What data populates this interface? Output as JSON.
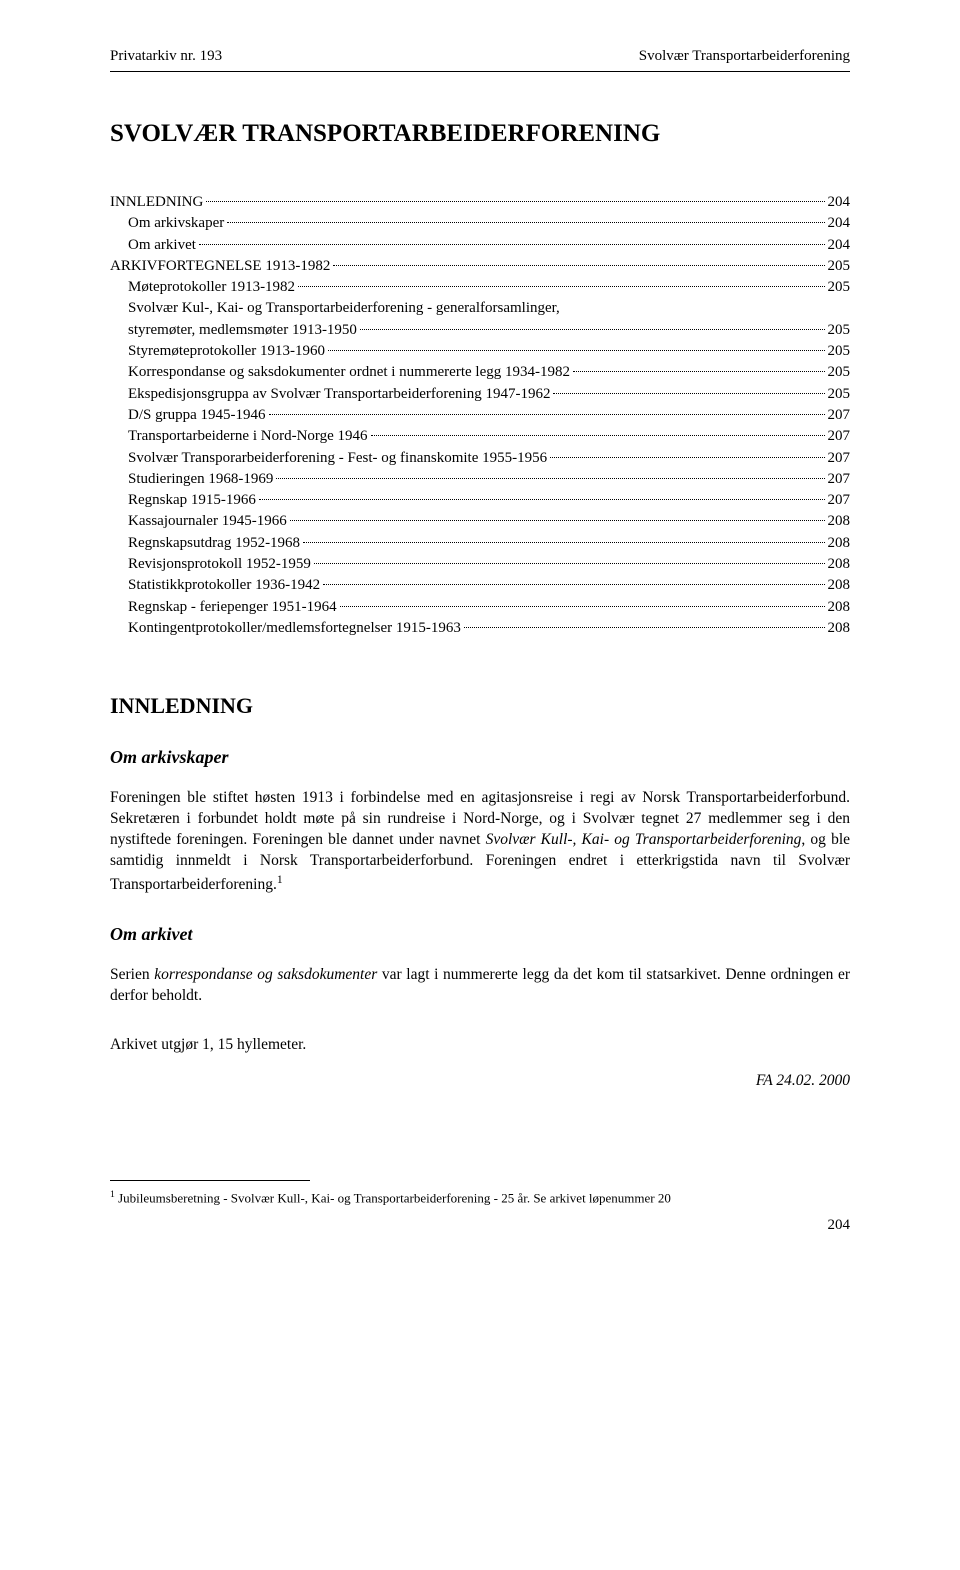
{
  "header": {
    "left": "Privatarkiv nr. 193",
    "right": "Svolvær Transportarbeiderforening"
  },
  "title": "SVOLVÆR TRANSPORTARBEIDERFORENING",
  "toc": [
    {
      "label": "INNLEDNING",
      "page": "204",
      "indent": false
    },
    {
      "label": "Om arkivskaper",
      "page": "204",
      "indent": true
    },
    {
      "label": "Om arkivet",
      "page": "204",
      "indent": true
    },
    {
      "label": "ARKIVFORTEGNELSE 1913-1982",
      "page": "205",
      "indent": false
    },
    {
      "label": "Møteprotokoller 1913-1982",
      "page": "205",
      "indent": true
    },
    {
      "label": "Svolvær Kul-, Kai- og Transportarbeiderforening - generalforsamlinger, styremøter, medlemsmøter 1913-1950",
      "page": "205",
      "indent": true
    },
    {
      "label": "Styremøteprotokoller 1913-1960",
      "page": "205",
      "indent": true
    },
    {
      "label": "Korrespondanse og saksdokumenter ordnet i nummererte legg 1934-1982",
      "page": "205",
      "indent": true
    },
    {
      "label": "Ekspedisjonsgruppa av Svolvær Transportarbeiderforening 1947-1962",
      "page": "205",
      "indent": true
    },
    {
      "label": "D/S gruppa 1945-1946",
      "page": "207",
      "indent": true
    },
    {
      "label": "Transportarbeiderne i Nord-Norge 1946",
      "page": "207",
      "indent": true
    },
    {
      "label": "Svolvær Transporarbeiderforening - Fest- og finanskomite 1955-1956",
      "page": "207",
      "indent": true
    },
    {
      "label": "Studieringen 1968-1969",
      "page": "207",
      "indent": true
    },
    {
      "label": "Regnskap 1915-1966",
      "page": "207",
      "indent": true
    },
    {
      "label": "Kassajournaler 1945-1966",
      "page": "208",
      "indent": true
    },
    {
      "label": "Regnskapsutdrag 1952-1968",
      "page": "208",
      "indent": true
    },
    {
      "label": "Revisjonsprotokoll 1952-1959",
      "page": "208",
      "indent": true
    },
    {
      "label": "Statistikkprotokoller 1936-1942",
      "page": "208",
      "indent": true
    },
    {
      "label": "Regnskap - feriepenger 1951-1964",
      "page": "208",
      "indent": true
    },
    {
      "label": "Kontingentprotokoller/medlemsfortegnelser 1915-1963",
      "page": "208",
      "indent": true
    }
  ],
  "sections": {
    "innledning_title": "INNLEDNING",
    "om_arkivskaper_title": "Om arkivskaper",
    "om_arkivskaper_p1a": "Foreningen ble stiftet høsten 1913 i forbindelse med en agitasjonsreise i regi av Norsk Transportarbeiderforbund. Sekretæren i forbundet holdt møte på sin rundreise i Nord-Norge, og i Svolvær tegnet 27 medlemmer seg i den nystiftede foreningen. Foreningen ble dannet under navnet ",
    "om_arkivskaper_p1b": "Svolvær Kull-, Kai- og Transportarbeiderforening",
    "om_arkivskaper_p1c": ", og ble samtidig innmeldt i Norsk Transportarbeiderforbund. Foreningen endret i etterkrigstida navn til Svolvær Transportarbeiderforening.",
    "om_arkivet_title": "Om arkivet",
    "om_arkivet_p1a": "Serien ",
    "om_arkivet_p1b": "korrespondanse og saksdokumenter",
    "om_arkivet_p1c": " var lagt i nummererte legg da det kom til statsarkivet. Denne ordningen er derfor beholdt.",
    "arkivet_line": "Arkivet utgjør 1, 15 hyllemeter.",
    "date": "FA 24.02. 2000"
  },
  "footnote": {
    "marker": "1",
    "text": " Jubileumsberetning - Svolvær Kull-, Kai- og Transportarbeiderforening - 25 år. Se arkivet løpenummer 20"
  },
  "page_number": "204"
}
